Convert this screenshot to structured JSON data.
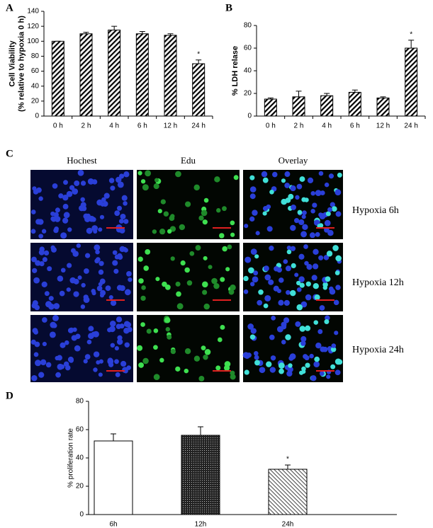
{
  "chart_data": [
    {
      "type": "bar",
      "label": "A",
      "ylabel": [
        "Cell Viability",
        "(% relative to hypoxia 0 h)"
      ],
      "categories": [
        "0 h",
        "2 h",
        "4 h",
        "6 h",
        "12 h",
        "24 h"
      ],
      "values": [
        100,
        110,
        115,
        110,
        108,
        70
      ],
      "errors": [
        0,
        2,
        5,
        3,
        2,
        5
      ],
      "ylim": [
        0,
        140
      ],
      "yticks": [
        0,
        20,
        40,
        60,
        80,
        100,
        120,
        140
      ],
      "annotations": [
        {
          "x": "24 h",
          "text": "*"
        }
      ]
    },
    {
      "type": "bar",
      "label": "B",
      "ylabel": [
        "% LDH relase"
      ],
      "categories": [
        "0 h",
        "2 h",
        "4 h",
        "6 h",
        "12 h",
        "24 h"
      ],
      "values": [
        15,
        17,
        18,
        21,
        16,
        60
      ],
      "errors": [
        1,
        5,
        2,
        2,
        1,
        7
      ],
      "ylim": [
        0,
        80
      ],
      "yticks": [
        0,
        20,
        40,
        60,
        80
      ],
      "annotations": [
        {
          "x": "24 h",
          "text": "*"
        }
      ]
    },
    {
      "type": "bar",
      "label": "D",
      "ylabel": [
        "% proliferation rate"
      ],
      "categories": [
        "6h",
        "12h",
        "24h"
      ],
      "values": [
        52,
        56,
        32
      ],
      "errors": [
        5,
        6,
        3
      ],
      "ylim": [
        0,
        80
      ],
      "yticks": [
        0,
        20,
        40,
        60,
        80
      ],
      "annotations": [
        {
          "x": "24h",
          "text": "*"
        }
      ]
    }
  ],
  "panel_c": {
    "label": "C",
    "columns": [
      "Hochest",
      "Edu",
      "Overlay"
    ],
    "rows": [
      "Hypoxia 6h",
      "Hypoxia 12h",
      "Hypoxia 24h"
    ]
  }
}
